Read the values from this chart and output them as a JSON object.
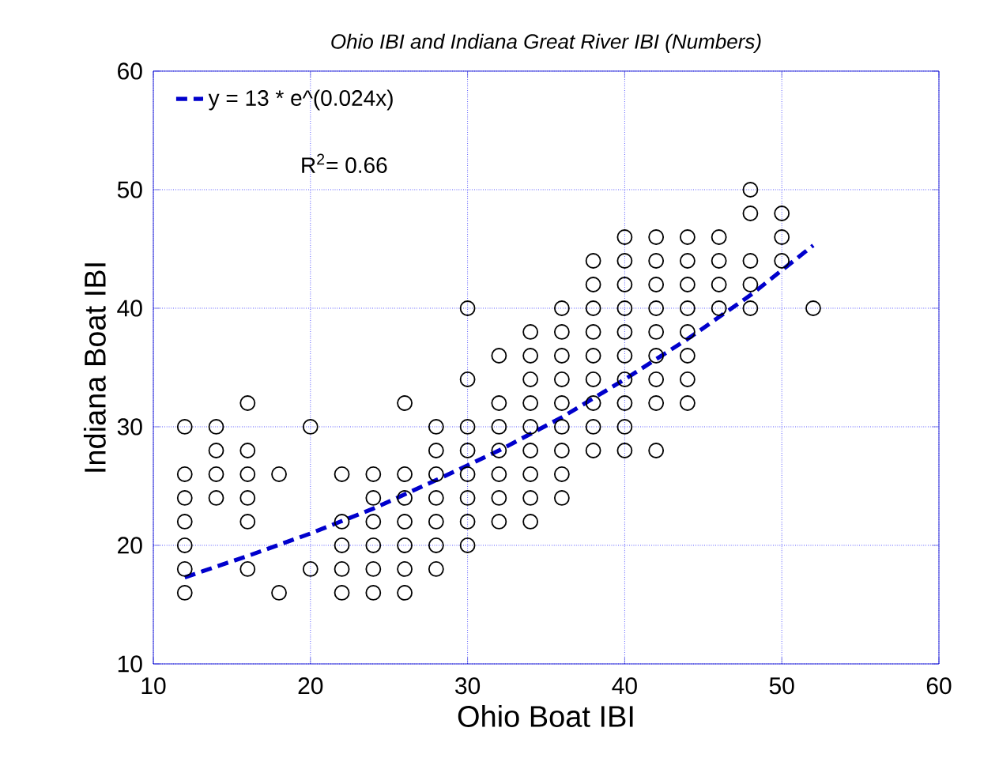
{
  "chart_data": {
    "type": "scatter",
    "title": "Ohio IBI and Indiana Great River IBI (Numbers)",
    "xlabel": "Ohio Boat IBI",
    "ylabel": "Indiana Boat IBI",
    "xlim": [
      10,
      60
    ],
    "xticks": [
      10,
      20,
      30,
      40,
      50,
      60
    ],
    "ylim": [
      10,
      60
    ],
    "yticks": [
      10,
      20,
      30,
      40,
      50,
      60
    ],
    "grid": true,
    "legend": "top left",
    "marker": "circle",
    "annotations": [
      "R$^{2}$= 0.66"
    ],
    "series": [
      {
        "color": "#000000",
        "x": [
          12,
          12,
          12,
          12,
          12,
          12,
          12,
          14,
          14,
          14,
          14,
          16,
          16,
          16,
          16,
          16,
          16,
          18,
          18,
          20,
          20,
          22,
          22,
          22,
          22,
          22,
          24,
          24,
          24,
          24,
          24,
          24,
          26,
          26,
          26,
          26,
          26,
          26,
          26,
          28,
          28,
          28,
          28,
          28,
          28,
          28,
          30,
          30,
          30,
          30,
          30,
          30,
          30,
          30,
          32,
          32,
          32,
          32,
          32,
          32,
          32,
          34,
          34,
          34,
          34,
          34,
          34,
          34,
          34,
          34,
          36,
          36,
          36,
          36,
          36,
          36,
          36,
          36,
          36,
          38,
          38,
          38,
          38,
          38,
          38,
          38,
          38,
          38,
          40,
          40,
          40,
          40,
          40,
          40,
          40,
          40,
          40,
          40,
          42,
          42,
          42,
          42,
          42,
          42,
          42,
          42,
          42,
          44,
          44,
          44,
          44,
          44,
          44,
          44,
          44,
          46,
          46,
          46,
          46,
          48,
          48,
          48,
          48,
          48,
          50,
          50,
          50,
          52
        ],
        "values": [
          30,
          26,
          24,
          22,
          20,
          18,
          16,
          30,
          28,
          26,
          24,
          32,
          28,
          26,
          24,
          22,
          18,
          26,
          16,
          30,
          18,
          26,
          22,
          20,
          18,
          16,
          26,
          24,
          22,
          20,
          18,
          16,
          32,
          26,
          24,
          22,
          20,
          18,
          16,
          30,
          28,
          26,
          24,
          22,
          20,
          18,
          40,
          34,
          30,
          28,
          26,
          24,
          22,
          20,
          36,
          32,
          30,
          28,
          26,
          24,
          22,
          38,
          36,
          34,
          32,
          30,
          28,
          26,
          24,
          22,
          40,
          38,
          36,
          34,
          32,
          30,
          28,
          26,
          24,
          44,
          42,
          40,
          38,
          36,
          34,
          32,
          30,
          28,
          46,
          44,
          42,
          40,
          38,
          36,
          34,
          32,
          30,
          28,
          46,
          44,
          42,
          40,
          38,
          36,
          34,
          32,
          28,
          46,
          44,
          42,
          40,
          38,
          36,
          34,
          32,
          46,
          44,
          42,
          40,
          50,
          48,
          44,
          42,
          40,
          48,
          46,
          44,
          40
        ]
      },
      {
        "type": "line",
        "name": "y = 13 * e^(0.024x)",
        "color": "#0000cc",
        "line_style": "dashed",
        "marker": "none",
        "x": [
          12,
          16,
          20,
          24,
          28,
          32,
          36,
          40,
          44,
          48,
          52
        ],
        "values": [
          17.3,
          19.1,
          21.0,
          23.1,
          25.5,
          28.0,
          30.8,
          34.0,
          37.4,
          41.1,
          45.3
        ]
      }
    ]
  }
}
